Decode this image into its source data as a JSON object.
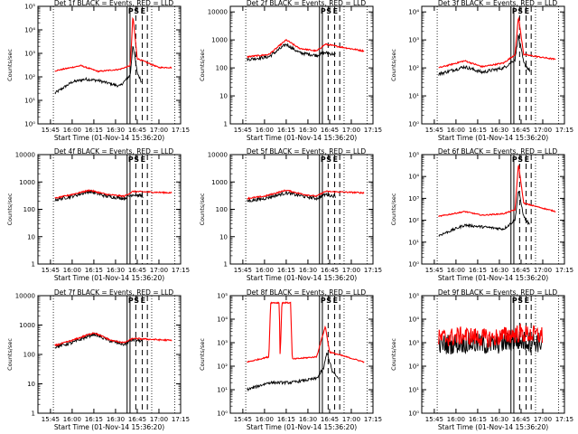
{
  "figure": {
    "ylabel": "Counts/sec",
    "xlabel": "Start Time (01-Nov-14 15:36:20)",
    "x_ticks": [
      "15:45",
      "16:00",
      "16:15",
      "16:30",
      "16:45",
      "17:00",
      "17:15"
    ],
    "marker_letters": [
      "P",
      "S",
      "E"
    ],
    "series_colors": {
      "events": "#000000",
      "lld": "#ff0000"
    }
  },
  "chart_data": [
    {
      "type": "line",
      "title": "Det 1f BLACK = Events, RED = LLD",
      "scale": "log",
      "yticks": [
        "10⁰",
        "10¹",
        "10²",
        "10³",
        "10⁴",
        "10⁵"
      ],
      "ylim_log10": [
        0,
        5
      ],
      "xlim": [
        "15:36:20",
        "17:15"
      ],
      "lld_approx": [
        [
          15.8,
          180
        ],
        [
          16.1,
          300
        ],
        [
          16.3,
          170
        ],
        [
          16.55,
          210
        ],
        [
          16.67,
          300
        ],
        [
          16.7,
          40000
        ],
        [
          16.75,
          600
        ],
        [
          17.0,
          250
        ],
        [
          17.15,
          250
        ]
      ],
      "events_approx": [
        [
          15.8,
          20
        ],
        [
          16.0,
          60
        ],
        [
          16.15,
          80
        ],
        [
          16.3,
          70
        ],
        [
          16.55,
          40
        ],
        [
          16.67,
          120
        ],
        [
          16.7,
          2500
        ],
        [
          16.75,
          150
        ],
        [
          16.8,
          60
        ]
      ]
    },
    {
      "type": "line",
      "title": "Det 2f BLACK = Events, RED = LLD",
      "scale": "log",
      "yticks": [
        "1",
        "10",
        "100",
        "1000",
        "10000"
      ],
      "ylim_log10": [
        0,
        4.2
      ],
      "xlim": [
        "15:36:20",
        "17:15"
      ],
      "lld_approx": [
        [
          15.8,
          250
        ],
        [
          16.05,
          300
        ],
        [
          16.25,
          1000
        ],
        [
          16.4,
          500
        ],
        [
          16.6,
          400
        ],
        [
          16.7,
          700
        ],
        [
          17.15,
          400
        ]
      ],
      "events_approx": [
        [
          15.8,
          200
        ],
        [
          16.05,
          250
        ],
        [
          16.25,
          700
        ],
        [
          16.4,
          350
        ],
        [
          16.6,
          280
        ],
        [
          16.7,
          350
        ],
        [
          16.82,
          300
        ]
      ]
    },
    {
      "type": "line",
      "title": "Det 3f BLACK = Events, RED = LLD",
      "scale": "log",
      "yticks": [
        "10⁰",
        "10¹",
        "10²",
        "10³",
        "10⁴"
      ],
      "ylim_log10": [
        0,
        4.2
      ],
      "xlim": [
        "15:36:20",
        "17:15"
      ],
      "lld_approx": [
        [
          15.8,
          100
        ],
        [
          16.1,
          180
        ],
        [
          16.3,
          110
        ],
        [
          16.55,
          150
        ],
        [
          16.68,
          300
        ],
        [
          16.72,
          7000
        ],
        [
          16.78,
          300
        ],
        [
          17.15,
          200
        ]
      ],
      "events_approx": [
        [
          15.8,
          60
        ],
        [
          16.1,
          110
        ],
        [
          16.3,
          70
        ],
        [
          16.55,
          100
        ],
        [
          16.68,
          200
        ],
        [
          16.72,
          1500
        ],
        [
          16.78,
          150
        ],
        [
          16.85,
          80
        ]
      ]
    },
    {
      "type": "line",
      "title": "Det 4f BLACK = Events, RED = LLD",
      "scale": "log",
      "yticks": [
        "1",
        "10",
        "100",
        "1000",
        "10000"
      ],
      "ylim_log10": [
        0,
        4
      ],
      "xlim": [
        "15:36:20",
        "17:15"
      ],
      "lld_approx": [
        [
          15.8,
          250
        ],
        [
          16.0,
          350
        ],
        [
          16.2,
          500
        ],
        [
          16.4,
          350
        ],
        [
          16.6,
          300
        ],
        [
          16.7,
          450
        ],
        [
          17.15,
          400
        ]
      ],
      "events_approx": [
        [
          15.8,
          220
        ],
        [
          16.0,
          300
        ],
        [
          16.2,
          450
        ],
        [
          16.4,
          300
        ],
        [
          16.6,
          250
        ],
        [
          16.7,
          350
        ],
        [
          16.82,
          300
        ]
      ]
    },
    {
      "type": "line",
      "title": "Det 5f BLACK = Events, RED = LLD",
      "scale": "log",
      "yticks": [
        "1",
        "10",
        "100",
        "1000",
        "10000"
      ],
      "ylim_log10": [
        0,
        4
      ],
      "xlim": [
        "15:36:20",
        "17:15"
      ],
      "lld_approx": [
        [
          15.8,
          250
        ],
        [
          16.0,
          300
        ],
        [
          16.25,
          500
        ],
        [
          16.45,
          350
        ],
        [
          16.6,
          300
        ],
        [
          16.7,
          450
        ],
        [
          17.15,
          400
        ]
      ],
      "events_approx": [
        [
          15.8,
          200
        ],
        [
          16.0,
          250
        ],
        [
          16.25,
          400
        ],
        [
          16.45,
          300
        ],
        [
          16.6,
          250
        ],
        [
          16.7,
          350
        ],
        [
          16.82,
          300
        ]
      ]
    },
    {
      "type": "line",
      "title": "Det 6f BLACK = Events, RED = LLD",
      "scale": "log",
      "yticks": [
        "10⁰",
        "10¹",
        "10²",
        "10³",
        "10⁴",
        "10⁵"
      ],
      "ylim_log10": [
        0,
        5
      ],
      "xlim": [
        "15:36:20",
        "17:15"
      ],
      "lld_approx": [
        [
          15.8,
          150
        ],
        [
          16.1,
          250
        ],
        [
          16.3,
          170
        ],
        [
          16.55,
          200
        ],
        [
          16.68,
          300
        ],
        [
          16.72,
          40000
        ],
        [
          16.78,
          600
        ],
        [
          17.15,
          250
        ]
      ],
      "events_approx": [
        [
          15.8,
          20
        ],
        [
          16.1,
          60
        ],
        [
          16.3,
          50
        ],
        [
          16.55,
          40
        ],
        [
          16.68,
          100
        ],
        [
          16.72,
          2500
        ],
        [
          16.78,
          150
        ],
        [
          16.85,
          60
        ]
      ]
    },
    {
      "type": "line",
      "title": "Det 7f BLACK = Events, RED = LLD",
      "scale": "log",
      "yticks": [
        "1",
        "10",
        "100",
        "1000",
        "10000"
      ],
      "ylim_log10": [
        0,
        4
      ],
      "xlim": [
        "15:36:20",
        "17:15"
      ],
      "lld_approx": [
        [
          15.8,
          200
        ],
        [
          16.0,
          300
        ],
        [
          16.25,
          550
        ],
        [
          16.45,
          300
        ],
        [
          16.6,
          250
        ],
        [
          16.7,
          350
        ],
        [
          17.15,
          300
        ]
      ],
      "events_approx": [
        [
          15.8,
          180
        ],
        [
          16.0,
          250
        ],
        [
          16.25,
          500
        ],
        [
          16.45,
          280
        ],
        [
          16.6,
          220
        ],
        [
          16.7,
          320
        ],
        [
          16.82,
          280
        ]
      ]
    },
    {
      "type": "line",
      "title": "Det 8f BLACK = Events, RED = LLD",
      "scale": "log",
      "yticks": [
        "10⁰",
        "10¹",
        "10²",
        "10³",
        "10⁴",
        "10⁵"
      ],
      "ylim_log10": [
        0,
        5
      ],
      "xlim": [
        "15:36:20",
        "17:15"
      ],
      "lld_approx": [
        [
          15.8,
          150
        ],
        [
          16.05,
          250
        ],
        [
          16.07,
          50000
        ],
        [
          16.17,
          50000
        ],
        [
          16.18,
          250
        ],
        [
          16.2,
          50000
        ],
        [
          16.3,
          50000
        ],
        [
          16.32,
          200
        ],
        [
          16.6,
          250
        ],
        [
          16.7,
          5000
        ],
        [
          16.75,
          400
        ],
        [
          17.15,
          150
        ]
      ],
      "events_approx": [
        [
          15.8,
          10
        ],
        [
          16.05,
          20
        ],
        [
          16.3,
          20
        ],
        [
          16.6,
          30
        ],
        [
          16.68,
          80
        ],
        [
          16.72,
          400
        ],
        [
          16.78,
          60
        ],
        [
          16.85,
          30
        ]
      ]
    },
    {
      "type": "line",
      "title": "Det 9f BLACK = Events, RED = LLD",
      "scale": "log",
      "yticks": [
        "10⁰",
        "10¹",
        "10²",
        "10³",
        "10⁴",
        "10⁵"
      ],
      "ylim_log10": [
        0,
        5
      ],
      "xlim": [
        "15:36:20",
        "17:15"
      ],
      "lld_approx": [
        [
          15.8,
          1500
        ],
        [
          16.1,
          2000
        ],
        [
          16.4,
          1500
        ],
        [
          16.7,
          2500
        ],
        [
          17.0,
          2000
        ]
      ],
      "events_approx": [
        [
          15.8,
          800
        ],
        [
          16.1,
          1000
        ],
        [
          16.4,
          800
        ],
        [
          16.7,
          1200
        ],
        [
          17.0,
          1000
        ]
      ]
    }
  ]
}
